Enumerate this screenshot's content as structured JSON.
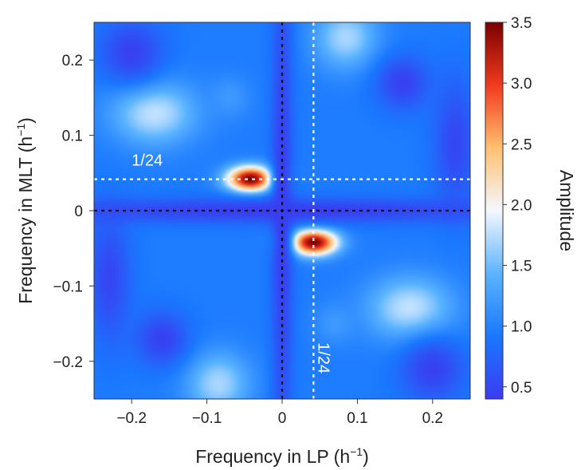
{
  "chart_data": {
    "type": "heatmap",
    "xlabel": "Frequency in LP (h",
    "ylabel": "Frequency in MLT (h",
    "unit_superscript": "−1",
    "xlim": [
      -0.25,
      0.25
    ],
    "ylim": [
      -0.25,
      0.25
    ],
    "x_ticks": [
      {
        "v": -0.2,
        "label": "−0.2"
      },
      {
        "v": -0.1,
        "label": "−0.1"
      },
      {
        "v": 0,
        "label": "0"
      },
      {
        "v": 0.1,
        "label": "0.1"
      },
      {
        "v": 0.2,
        "label": "0.2"
      }
    ],
    "y_ticks": [
      {
        "v": 0.2,
        "label": "0.2"
      },
      {
        "v": 0.1,
        "label": "0.1"
      },
      {
        "v": 0,
        "label": "0"
      },
      {
        "v": -0.1,
        "label": "−0.1"
      },
      {
        "v": -0.2,
        "label": "−0.2"
      }
    ],
    "colorbar": {
      "label": "Amplitude",
      "range": [
        0.4,
        3.5
      ],
      "ticks": [
        {
          "v": 3.5,
          "label": "3.5"
        },
        {
          "v": 3.0,
          "label": "3.0"
        },
        {
          "v": 2.5,
          "label": "2.5"
        },
        {
          "v": 2.0,
          "label": "2.0"
        },
        {
          "v": 1.5,
          "label": "1.5"
        },
        {
          "v": 1.0,
          "label": "1.0"
        },
        {
          "v": 0.5,
          "label": "0.5"
        }
      ],
      "colors": [
        "#3b3bf0",
        "#1a78ff",
        "#5cb4ff",
        "#f4f8ff",
        "#ffc070",
        "#f03a1e",
        "#7a0000"
      ]
    },
    "baseline": 0.95,
    "features": [
      {
        "x": -0.042,
        "y": 0.042,
        "amp": 3.5,
        "sx": 0.022,
        "sy": 0.012
      },
      {
        "x": 0.042,
        "y": -0.042,
        "amp": 3.5,
        "sx": 0.022,
        "sy": 0.012
      },
      {
        "x": -0.17,
        "y": 0.13,
        "amp": 1.8,
        "sx": 0.04,
        "sy": 0.03
      },
      {
        "x": 0.17,
        "y": -0.13,
        "amp": 1.8,
        "sx": 0.04,
        "sy": 0.03
      },
      {
        "x": 0.085,
        "y": 0.23,
        "amp": 1.7,
        "sx": 0.03,
        "sy": 0.03
      },
      {
        "x": -0.085,
        "y": -0.23,
        "amp": 1.7,
        "sx": 0.03,
        "sy": 0.03
      },
      {
        "x": 0.0,
        "y": 0.0,
        "amp": 0.42,
        "sx": 0.25,
        "sy": 0.012
      },
      {
        "x": 0.0,
        "y": 0.0,
        "amp": 0.42,
        "sx": 0.01,
        "sy": 0.25
      },
      {
        "x": -0.2,
        "y": 0.21,
        "amp": 0.45,
        "sx": 0.03,
        "sy": 0.03
      },
      {
        "x": 0.2,
        "y": -0.21,
        "amp": 0.45,
        "sx": 0.03,
        "sy": 0.03
      },
      {
        "x": -0.16,
        "y": -0.17,
        "amp": 0.45,
        "sx": 0.025,
        "sy": 0.025
      },
      {
        "x": 0.16,
        "y": 0.17,
        "amp": 0.45,
        "sx": 0.025,
        "sy": 0.025
      },
      {
        "x": -0.23,
        "y": -0.09,
        "amp": 0.5,
        "sx": 0.02,
        "sy": 0.06
      },
      {
        "x": 0.23,
        "y": 0.09,
        "amp": 0.5,
        "sx": 0.02,
        "sy": 0.06
      },
      {
        "x": -0.07,
        "y": 0.15,
        "amp": 1.2,
        "sx": 0.02,
        "sy": 0.02
      },
      {
        "x": 0.07,
        "y": -0.15,
        "amp": 1.2,
        "sx": 0.02,
        "sy": 0.02
      }
    ],
    "reference_lines": [
      {
        "orientation": "vertical",
        "value": 0,
        "color": "#111111"
      },
      {
        "orientation": "horizontal",
        "value": 0,
        "color": "#111111"
      },
      {
        "orientation": "vertical",
        "value": 0.0417,
        "color": "#ffffff"
      },
      {
        "orientation": "horizontal",
        "value": 0.0417,
        "color": "#ffffff"
      }
    ],
    "annotations": [
      {
        "text": "1/24",
        "x": -0.2,
        "y": 0.06,
        "rotate": 0
      },
      {
        "text": "1/24",
        "x": 0.048,
        "y": -0.175,
        "rotate": 90
      }
    ]
  }
}
